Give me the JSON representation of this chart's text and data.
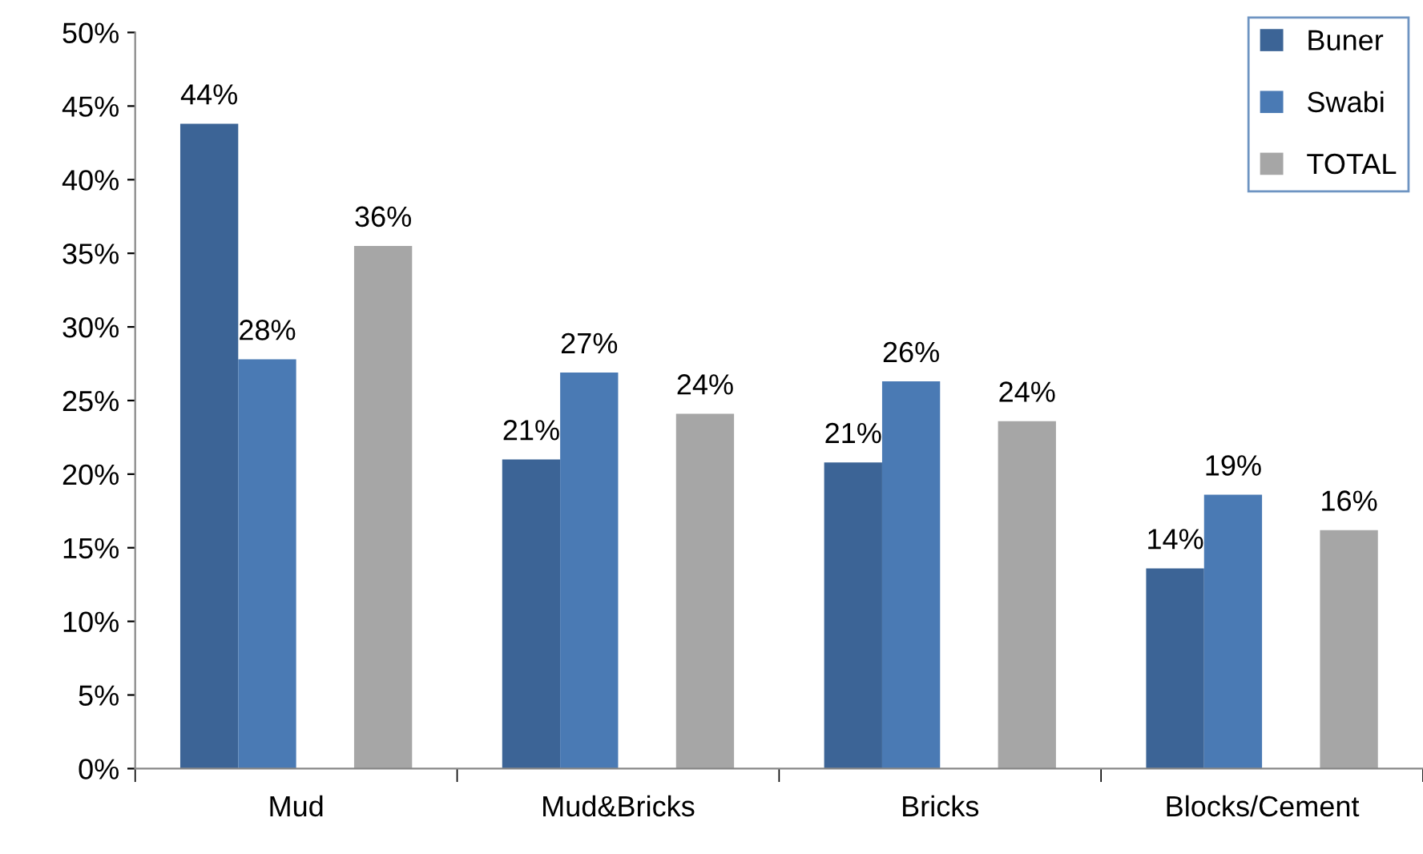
{
  "chart_data": {
    "type": "bar",
    "categories": [
      "Mud",
      "Mud&Bricks",
      "Bricks",
      "Blocks/Cement"
    ],
    "series": [
      {
        "name": "Buner",
        "color": "#3c6496",
        "values": [
          43.8,
          21.0,
          20.8,
          13.6
        ],
        "value_labels": [
          "44%",
          "21%",
          "21%",
          "14%"
        ]
      },
      {
        "name": "Swabi",
        "color": "#4a7ab4",
        "values": [
          27.8,
          26.9,
          26.3,
          18.6
        ],
        "value_labels": [
          "28%",
          "27%",
          "26%",
          "19%"
        ]
      },
      {
        "name": "TOTAL",
        "color": "#a6a6a6",
        "values": [
          35.5,
          24.1,
          23.6,
          16.2
        ],
        "value_labels": [
          "36%",
          "24%",
          "24%",
          "16%"
        ]
      }
    ],
    "ylim": [
      0,
      50
    ],
    "yticks": [
      {
        "value": 0,
        "label": "0%"
      },
      {
        "value": 5,
        "label": "5%"
      },
      {
        "value": 10,
        "label": "10%"
      },
      {
        "value": 15,
        "label": "15%"
      },
      {
        "value": 20,
        "label": "20%"
      },
      {
        "value": 25,
        "label": "25%"
      },
      {
        "value": 30,
        "label": "30%"
      },
      {
        "value": 35,
        "label": "35%"
      },
      {
        "value": 40,
        "label": "40%"
      },
      {
        "value": 45,
        "label": "45%"
      },
      {
        "value": 50,
        "label": "50%"
      }
    ],
    "grid": false,
    "legend": "top right"
  }
}
